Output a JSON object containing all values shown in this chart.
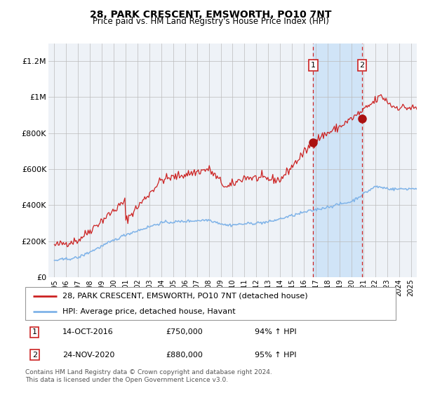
{
  "title": "28, PARK CRESCENT, EMSWORTH, PO10 7NT",
  "subtitle": "Price paid vs. HM Land Registry's House Price Index (HPI)",
  "red_label": "28, PARK CRESCENT, EMSWORTH, PO10 7NT (detached house)",
  "blue_label": "HPI: Average price, detached house, Havant",
  "annotation1": {
    "num": "1",
    "date": "14-OCT-2016",
    "price": "£750,000",
    "pct": "94% ↑ HPI"
  },
  "annotation2": {
    "num": "2",
    "date": "24-NOV-2020",
    "price": "£880,000",
    "pct": "95% ↑ HPI"
  },
  "event1_year": 2016.79,
  "event2_year": 2020.9,
  "event1_red_value": 750000,
  "event2_red_value": 880000,
  "ylim": [
    0,
    1300000
  ],
  "xlim_start": 1994.5,
  "xlim_end": 2025.5,
  "footer": "Contains HM Land Registry data © Crown copyright and database right 2024.\nThis data is licensed under the Open Government Licence v3.0.",
  "bg_color": "#eef2f7",
  "shaded_region_color": "#d0e4f7",
  "grid_color": "#bbbbbb",
  "red_color": "#cc2222",
  "blue_color": "#7fb3e8",
  "dot_color": "#aa1111",
  "title_fontsize": 10,
  "subtitle_fontsize": 8.5,
  "ytick_fontsize": 8,
  "xtick_fontsize": 7,
  "legend_fontsize": 8,
  "ann_fontsize": 8,
  "footer_fontsize": 6.5
}
